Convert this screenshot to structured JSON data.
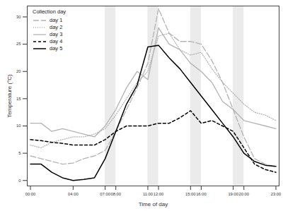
{
  "chart_data": {
    "type": "line",
    "x_label": "Time of day",
    "y_label": "Temperature (°C)",
    "legend_title": "Collection day",
    "legend": "top-left",
    "grid": false,
    "xlim": [
      -0.3,
      23.3
    ],
    "ylim": [
      -1,
      32
    ],
    "xticks": [
      {
        "value": 0,
        "label": "00:00"
      },
      {
        "value": 4,
        "label": "04:00"
      },
      {
        "value": 7,
        "label": "07:00"
      },
      {
        "value": 8,
        "label": "08:00"
      },
      {
        "value": 11,
        "label": "11:00"
      },
      {
        "value": 12,
        "label": "12:00"
      },
      {
        "value": 15,
        "label": "15:00"
      },
      {
        "value": 16,
        "label": "16:00"
      },
      {
        "value": 19,
        "label": "19:00"
      },
      {
        "value": 20,
        "label": "20:00"
      },
      {
        "value": 23,
        "label": "23:00"
      }
    ],
    "yticks": [
      0,
      5,
      10,
      15,
      20,
      25,
      30
    ],
    "shaded_intervals": [
      [
        7,
        8
      ],
      [
        11,
        12
      ],
      [
        15,
        16
      ],
      [
        19,
        20
      ]
    ],
    "x": [
      0,
      1,
      2,
      3,
      4,
      5,
      6,
      7,
      8,
      9,
      10,
      11,
      12,
      13,
      14,
      15,
      16,
      17,
      18,
      19,
      20,
      21,
      22,
      23
    ],
    "series": [
      {
        "name": "day 1",
        "color": "#b3b3b3",
        "line_style": "longdash",
        "values": [
          4.5,
          4,
          3.5,
          3,
          3.2,
          4,
          4.5,
          5.5,
          9,
          13,
          17,
          21.5,
          31.5,
          27,
          25.5,
          25.5,
          25,
          22,
          18,
          13,
          8,
          4,
          3,
          2.5
        ]
      },
      {
        "name": "day 2",
        "color": "#b3b3b3",
        "line_style": "dotted",
        "values": [
          6.5,
          6,
          7,
          7.5,
          8,
          8,
          8.5,
          9.5,
          12,
          15,
          18,
          20,
          26.5,
          27,
          24,
          23,
          23.5,
          20.5,
          18,
          16,
          14,
          12.5,
          12,
          11
        ]
      },
      {
        "name": "day 3",
        "color": "#b3b3b3",
        "line_style": "solid",
        "values": [
          10.5,
          10.5,
          9,
          9.5,
          9,
          8.5,
          8,
          10,
          13,
          17,
          20,
          18.5,
          28,
          25,
          24,
          21.5,
          20,
          18,
          14.5,
          13,
          11,
          10.5,
          10,
          9.5
        ]
      },
      {
        "name": "day 4",
        "color": "#000000",
        "line_style": "dashed",
        "values": [
          7.5,
          7.3,
          7,
          6.8,
          6.5,
          6.5,
          6.5,
          7.5,
          9,
          10,
          10,
          10,
          10.5,
          10.5,
          11.5,
          12.8,
          10.5,
          11,
          10,
          9,
          6,
          3,
          2,
          1.5
        ]
      },
      {
        "name": "day 5",
        "color": "#000000",
        "line_style": "solid",
        "values": [
          3,
          3,
          1.5,
          0.5,
          0,
          0.2,
          0.5,
          4,
          9,
          14,
          17.5,
          24.5,
          24.8,
          22.5,
          20.5,
          18,
          15.5,
          13,
          10.5,
          8,
          5,
          3.5,
          2.8,
          2.6
        ]
      }
    ]
  }
}
